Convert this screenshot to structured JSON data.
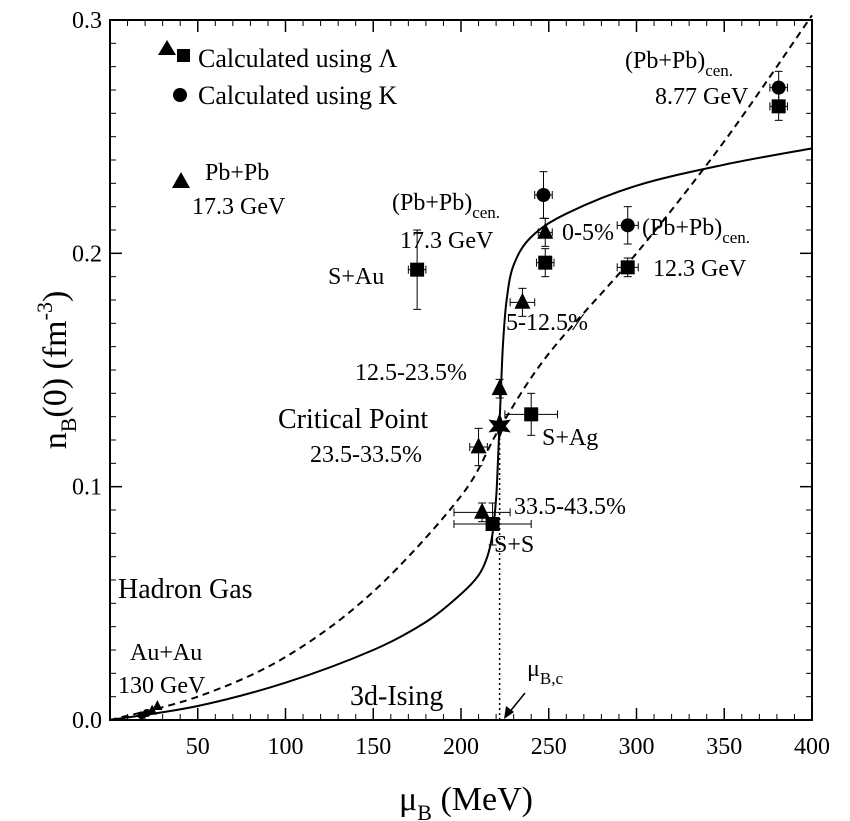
{
  "chart_data": {
    "type": "scatter",
    "xlabel": "μB (MeV)",
    "ylabel": "nB(0) (fm-3)",
    "xlim": [
      0,
      400
    ],
    "ylim": [
      0,
      0.3
    ],
    "x_ticks": [
      "50",
      "100",
      "150",
      "200",
      "250",
      "300",
      "350",
      "400"
    ],
    "y_ticks": [
      "0.0",
      "0.1",
      "0.2",
      "0.3"
    ],
    "grid": false,
    "legend": {
      "position": "top-left",
      "entries": [
        {
          "marker": "triangle+square",
          "label": "Calculated using Λ"
        },
        {
          "marker": "circle",
          "label": "Calculated using K"
        }
      ]
    },
    "curves": [
      {
        "style": "solid",
        "label": "3d-Ising",
        "x": [
          0,
          50,
          100,
          150,
          180,
          200,
          210,
          215,
          218,
          220,
          221,
          222,
          223,
          224,
          226,
          230,
          240,
          260,
          300,
          350,
          400
        ],
        "y": [
          0,
          0.006,
          0.016,
          0.03,
          0.042,
          0.054,
          0.062,
          0.07,
          0.08,
          0.095,
          0.11,
          0.128,
          0.146,
          0.162,
          0.18,
          0.195,
          0.207,
          0.217,
          0.229,
          0.238,
          0.245
        ]
      },
      {
        "style": "dashed",
        "label": "Hadron Gas",
        "x": [
          0,
          50,
          100,
          150,
          200,
          222,
          250,
          300,
          350,
          400
        ],
        "y": [
          0,
          0.01,
          0.027,
          0.055,
          0.096,
          0.125,
          0.157,
          0.2,
          0.248,
          0.302
        ]
      },
      {
        "style": "dotted",
        "label": "μB,c",
        "x": [
          222,
          222
        ],
        "y": [
          0,
          0.126
        ]
      }
    ],
    "series": [
      {
        "marker": "triangle",
        "points": [
          {
            "x": 248,
            "y": 0.209,
            "xerr": 4,
            "yerr": 0.006,
            "label": "0-5%"
          },
          {
            "x": 235,
            "y": 0.179,
            "xerr": 7,
            "yerr": 0.006,
            "label": "5-12.5%"
          },
          {
            "x": 222,
            "y": 0.142,
            "xerr": 0,
            "yerr": 0.004,
            "label": "12.5-23.5%"
          },
          {
            "x": 210,
            "y": 0.117,
            "xerr": 5,
            "yerr": 0.008,
            "label": "23.5-33.5%"
          },
          {
            "x": 212,
            "y": 0.089,
            "xerr": 16,
            "yerr": 0.004,
            "label": "33.5-43.5%"
          },
          {
            "x": 24,
            "y": 0.004,
            "xerr": 0,
            "yerr": 0,
            "label": ""
          },
          {
            "x": 27,
            "y": 0.006,
            "xerr": 0,
            "yerr": 0,
            "label": ""
          }
        ]
      },
      {
        "marker": "square",
        "points": [
          {
            "x": 381,
            "y": 0.263,
            "xerr": 5,
            "yerr": 0.006,
            "label": ""
          },
          {
            "x": 295,
            "y": 0.194,
            "xerr": 6,
            "yerr": 0.004,
            "label": ""
          },
          {
            "x": 248,
            "y": 0.196,
            "xerr": 5,
            "yerr": 0.006,
            "label": ""
          },
          {
            "x": 175,
            "y": 0.193,
            "xerr": 5,
            "yerr": 0.017,
            "label": ""
          },
          {
            "x": 240,
            "y": 0.131,
            "xerr": 15,
            "yerr": 0.009,
            "label": ""
          },
          {
            "x": 218,
            "y": 0.084,
            "xerr": 22,
            "yerr": 0.009,
            "label": ""
          }
        ]
      },
      {
        "marker": "circle",
        "points": [
          {
            "x": 381,
            "y": 0.271,
            "xerr": 5,
            "yerr": 0.007,
            "label": ""
          },
          {
            "x": 295,
            "y": 0.212,
            "xerr": 6,
            "yerr": 0.008,
            "label": ""
          },
          {
            "x": 247,
            "y": 0.225,
            "xerr": 5,
            "yerr": 0.01,
            "label": ""
          },
          {
            "x": 18,
            "y": 0.002,
            "xerr": 0,
            "yerr": 0,
            "label": ""
          },
          {
            "x": 21,
            "y": 0.003,
            "xerr": 0,
            "yerr": 0,
            "label": ""
          }
        ]
      },
      {
        "marker": "star",
        "points": [
          {
            "x": 222,
            "y": 0.126,
            "xerr": 0,
            "yerr": 0,
            "label": "Critical Point"
          }
        ]
      }
    ],
    "annotations": {
      "pbpb_cen": "(Pb+Pb)",
      "cen_sub": "cen.",
      "e877": "8.77 GeV",
      "e173": "17.3 GeV",
      "e123": "12.3 GeV",
      "pbpb": "Pb+Pb",
      "e173b": "17.3 GeV",
      "sau": "S+Au",
      "sag": "S+Ag",
      "ss": "S+S",
      "c0_5": "0-5%",
      "c5_12": "5-12.5%",
      "c12_23": "12.5-23.5%",
      "c23_33": "23.5-33.5%",
      "c33_43": "33.5-43.5%",
      "critical": "Critical Point",
      "hadron": "Hadron Gas",
      "auau": "Au+Au",
      "e130": "130 GeV",
      "ising": "3d-Ising",
      "mu_bc": "μ",
      "mu_bc_sub": "B,c"
    }
  }
}
